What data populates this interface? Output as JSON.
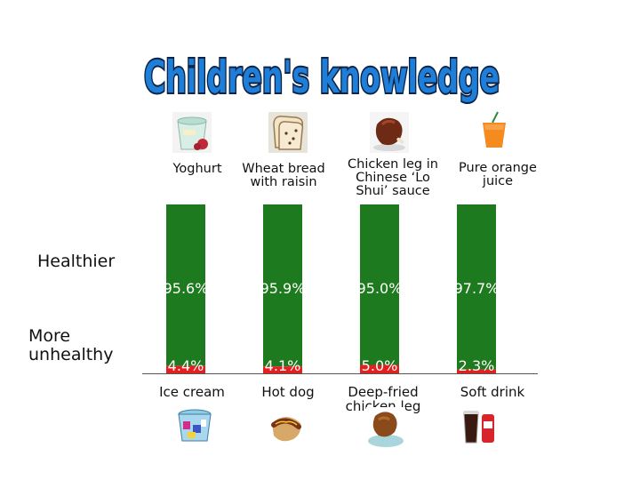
{
  "title": "Children's knowledge",
  "labels": {
    "healthier": "Healthier",
    "more_unhealthy": "More unhealthy"
  },
  "colors": {
    "healthy": "#1e7a1e",
    "unhealthy": "#e31f1f",
    "title_fill": "#1f7fd8",
    "title_stroke": "#0b2346"
  },
  "icons": {
    "top": [
      "yoghurt-icon",
      "wheat-bread-icon",
      "chicken-leg-icon",
      "orange-juice-icon"
    ],
    "bottom": [
      "ice-cream-icon",
      "hot-dog-icon",
      "fried-chicken-icon",
      "soft-drink-icon"
    ]
  },
  "chart_data": {
    "type": "bar",
    "stacked": true,
    "categories": [
      "Yoghurt vs Ice cream",
      "Wheat bread with raisin vs Hot dog",
      "Chicken leg in Chinese 'Lo Shui' sauce vs Deep-fried chicken leg",
      "Pure orange juice vs Soft drink"
    ],
    "healthier_items": [
      "Yoghurt",
      "Wheat bread with raisin",
      "Chicken leg in Chinese ‘Lo Shui’ sauce",
      "Pure orange juice"
    ],
    "unhealthy_items": [
      "Ice cream",
      "Hot dog",
      "Deep-fried chicken leg",
      "Soft drink"
    ],
    "series": [
      {
        "name": "Healthier",
        "values": [
          95.6,
          95.9,
          95.0,
          97.7
        ],
        "labels": [
          "95.6%",
          "95.9%",
          "95.0%",
          "97.7%"
        ]
      },
      {
        "name": "More unhealthy",
        "values": [
          4.4,
          4.1,
          5.0,
          2.3
        ],
        "labels": [
          "4.4%",
          "4.1%",
          "5.0%",
          "2.3%"
        ]
      }
    ],
    "ylim": [
      0,
      100
    ],
    "grid": false,
    "legend": "left"
  }
}
